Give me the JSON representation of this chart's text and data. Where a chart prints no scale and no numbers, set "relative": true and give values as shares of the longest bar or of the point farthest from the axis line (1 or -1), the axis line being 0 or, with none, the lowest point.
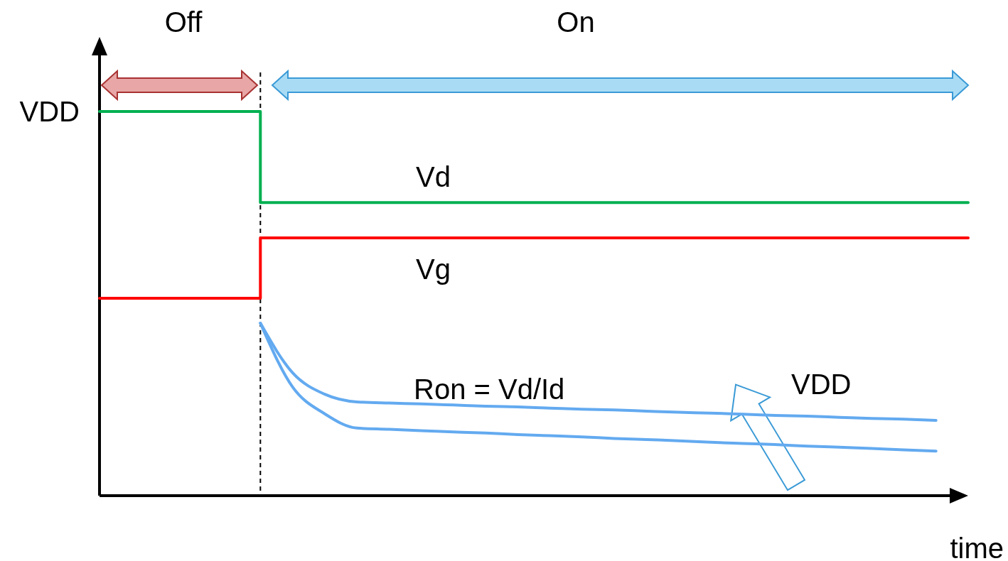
{
  "chart_data": {
    "type": "line",
    "relative": true,
    "xlabel": "time",
    "categories": [
      null,
      null,
      null,
      null,
      null,
      null,
      null,
      null,
      null,
      null,
      null,
      null,
      null,
      null,
      null,
      null,
      null,
      null,
      null,
      null,
      null,
      null,
      null,
      null,
      null,
      null,
      null,
      null
    ],
    "series": [
      {
        "name": "Vd",
        "type": "step",
        "color": "#00b050",
        "values": [
          1,
          1,
          1,
          1,
          1,
          0.763,
          0.763,
          0.763,
          0.763,
          0.763,
          0.763,
          0.763,
          0.763,
          0.763,
          0.763,
          0.763,
          0.763,
          0.763,
          0.763,
          0.763,
          0.763,
          0.763,
          0.763,
          0.763,
          0.763,
          0.763,
          0.763,
          0.763
        ]
      },
      {
        "name": "Vg",
        "type": "step",
        "color": "#ff0000",
        "values": [
          0.514,
          0.514,
          0.514,
          0.514,
          0.514,
          0.671,
          0.671,
          0.671,
          0.671,
          0.671,
          0.671,
          0.671,
          0.671,
          0.671,
          0.671,
          0.671,
          0.671,
          0.671,
          0.671,
          0.671,
          0.671,
          0.671,
          0.671,
          0.671,
          0.671,
          0.671,
          0.671,
          0.671
        ]
      },
      {
        "color": "#63aaf0",
        "values": [
          null,
          null,
          null,
          null,
          null,
          0.449,
          0.32,
          0.264,
          0.244,
          0.241,
          0.239,
          0.236,
          0.233,
          0.231,
          0.228,
          0.225,
          0.223,
          0.22,
          0.217,
          0.215,
          0.212,
          0.209,
          0.207,
          0.204,
          0.201,
          0.199,
          0.196,
          null
        ]
      },
      {
        "color": "#63aaf0",
        "values": [
          null,
          null,
          null,
          null,
          null,
          0.449,
          0.283,
          0.213,
          0.176,
          0.173,
          0.169,
          0.166,
          0.163,
          0.159,
          0.156,
          0.153,
          0.149,
          0.146,
          0.143,
          0.139,
          0.136,
          0.133,
          0.129,
          0.126,
          0.123,
          0.119,
          0.116,
          null
        ]
      }
    ],
    "annotations": [
      "VDD",
      "Off",
      "On",
      "Ron = Vd/Id",
      "VDD"
    ]
  }
}
